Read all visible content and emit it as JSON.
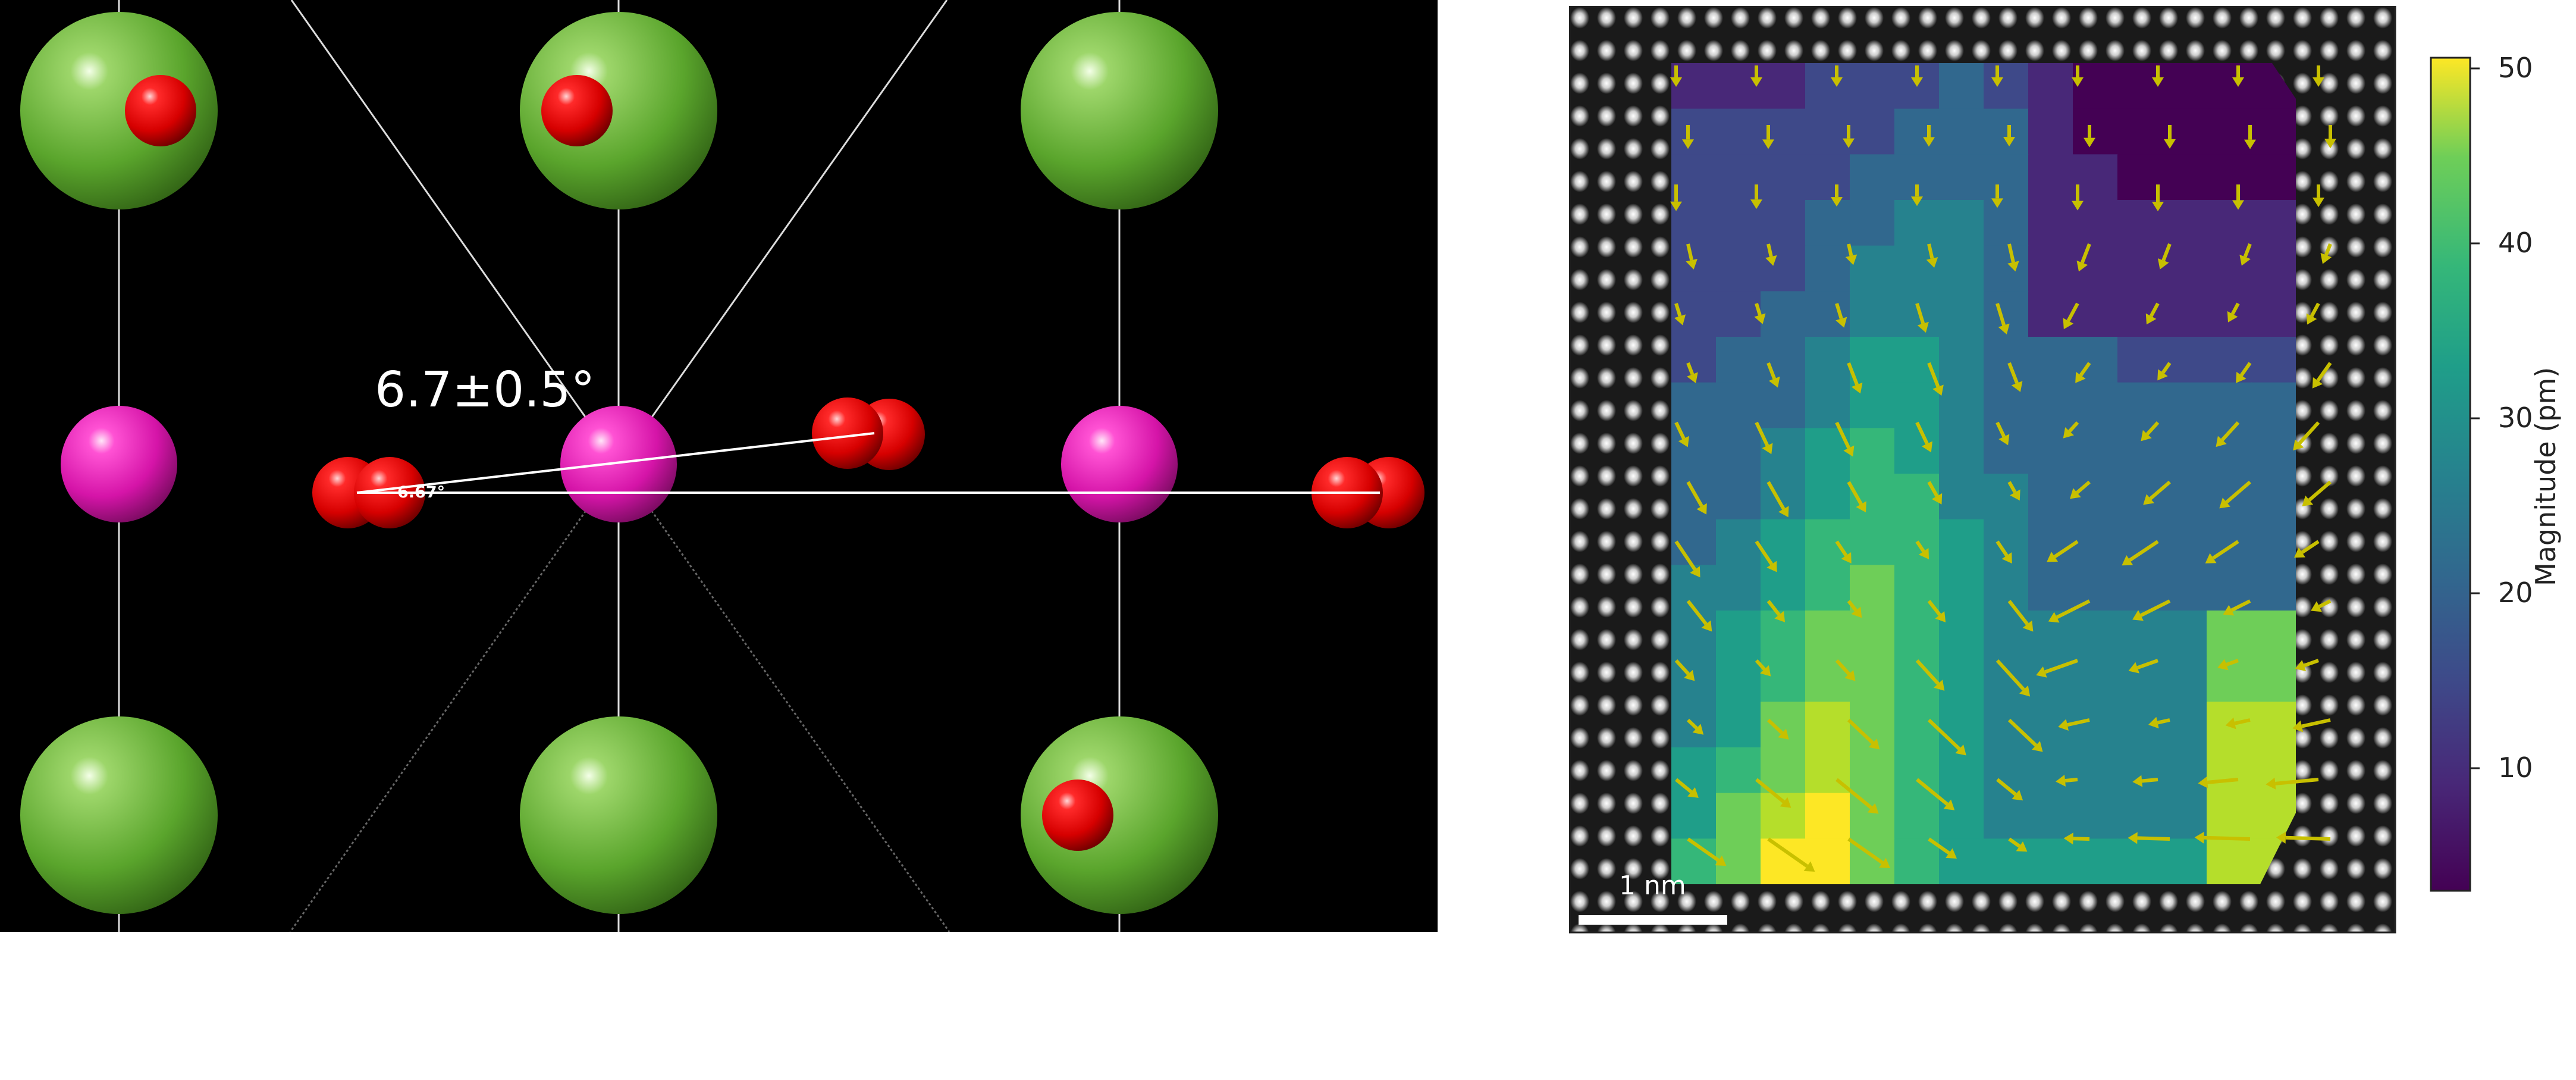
{
  "left_panel": {
    "angle_label": "6.7±0.5°",
    "small_angle_label": "6.67°",
    "atoms": {
      "green": "#6cb43b",
      "magenta": "#e21fb3",
      "red": "#e00000"
    }
  },
  "right_panel": {
    "scale_bar_label": "1 nm",
    "arrow_color": "#c8c000"
  },
  "colorbar": {
    "label": "Magnitude (pm)",
    "ticks": [
      "50",
      "40",
      "30",
      "20",
      "10"
    ],
    "range": [
      3,
      51
    ],
    "colormap": "viridis"
  }
}
